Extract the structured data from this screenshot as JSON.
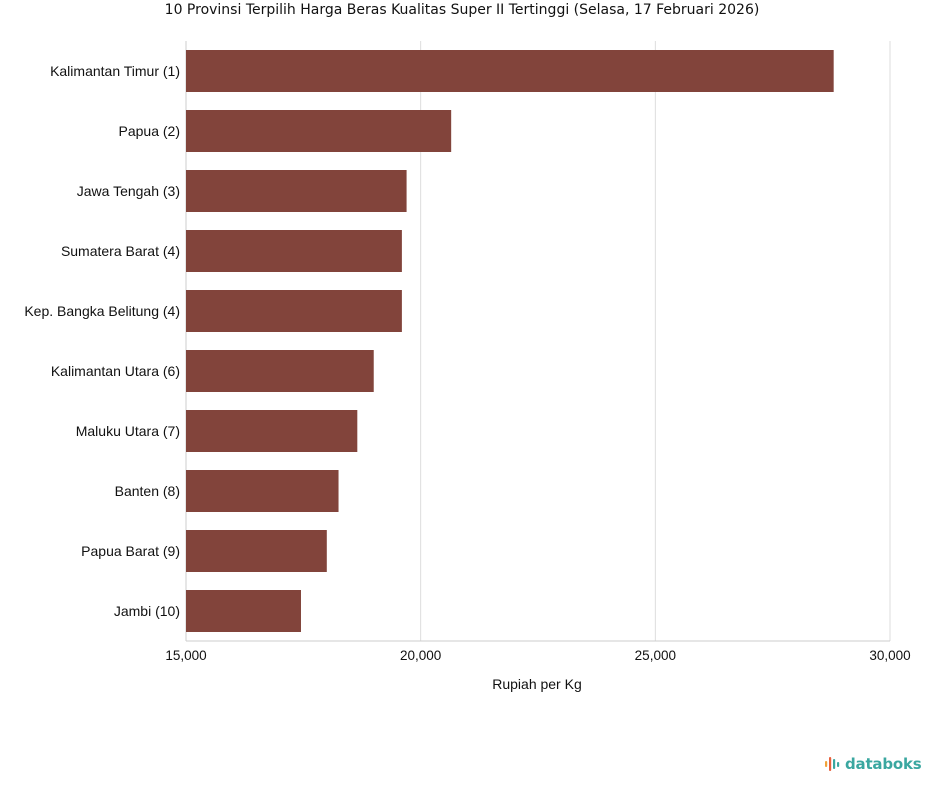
{
  "chart_data": {
    "type": "bar",
    "orientation": "horizontal",
    "title": "10 Provinsi Terpilih Harga Beras Kualitas Super II Tertinggi (Selasa, 17 Februari 2026)",
    "xlabel": "Rupiah per Kg",
    "ylabel": "",
    "categories": [
      "Kalimantan Timur (1)",
      "Papua (2)",
      "Jawa Tengah (3)",
      "Sumatera Barat (4)",
      "Kep. Bangka Belitung (4)",
      "Kalimantan Utara (6)",
      "Maluku Utara (7)",
      "Banten (8)",
      "Papua Barat (9)",
      "Jambi (10)"
    ],
    "values": [
      28800,
      20650,
      19700,
      19600,
      19600,
      19000,
      18650,
      18250,
      18000,
      17450
    ],
    "xlim": [
      15000,
      30000
    ],
    "xticks": [
      15000,
      20000,
      25000,
      30000
    ],
    "xtick_labels": [
      "15,000",
      "20,000",
      "25,000",
      "30,000"
    ],
    "grid": true,
    "bar_color": "#82443b"
  },
  "brand": {
    "name": "databoks",
    "icon": "databoks-logo-icon"
  }
}
